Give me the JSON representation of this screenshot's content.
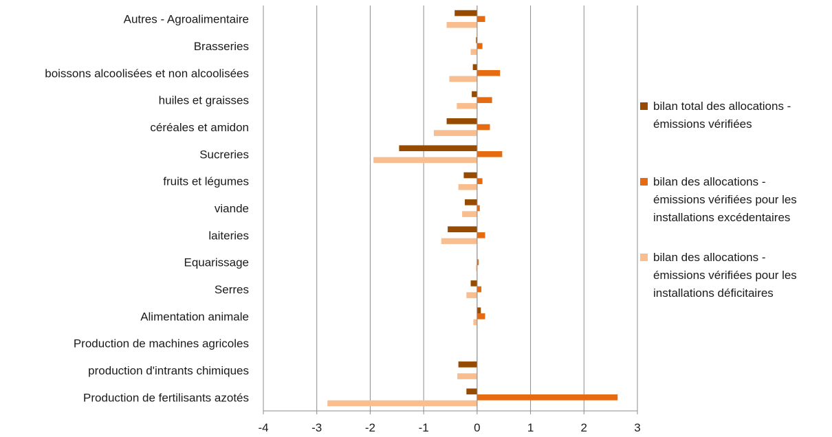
{
  "chart_data": {
    "type": "bar",
    "orientation": "horizontal",
    "categories": [
      "Autres - Agroalimentaire",
      "Brasseries",
      "boissons alcoolisées et non alcoolisées",
      "huiles et graisses",
      "céréales et amidon",
      "Sucreries",
      "fruits et légumes",
      "viande",
      "laiteries",
      "Equarissage",
      "Serres",
      "Alimentation animale",
      "Production de machines agricoles",
      "production d'intrants chimiques",
      "Production de fertilisants azotés"
    ],
    "series": [
      {
        "name": "bilan total des allocations - émissions vérifiées",
        "color": "#964B00",
        "values": [
          -0.42,
          -0.02,
          -0.08,
          -0.1,
          -0.57,
          -1.46,
          -0.25,
          -0.23,
          -0.55,
          0.0,
          -0.12,
          0.07,
          0.0,
          -0.35,
          -0.2
        ]
      },
      {
        "name": "bilan des allocations - émissions vérifiées pour les installations excédentaires",
        "color": "#E66B10",
        "values": [
          0.15,
          0.1,
          0.43,
          0.28,
          0.24,
          0.47,
          0.1,
          0.05,
          0.15,
          0.03,
          0.08,
          0.15,
          0.0,
          0.0,
          2.63
        ]
      },
      {
        "name": "bilan des allocations - émissions vérifiées pour les installations déficitaires",
        "color": "#F9BE8F",
        "values": [
          -0.57,
          -0.12,
          -0.52,
          -0.38,
          -0.81,
          -1.94,
          -0.35,
          -0.28,
          -0.67,
          -0.02,
          -0.2,
          -0.07,
          0.0,
          -0.37,
          -2.8
        ]
      }
    ],
    "xlim": [
      -4,
      3
    ],
    "xticks": [
      "-4",
      "-3",
      "-2",
      "-1",
      "0",
      "1",
      "2",
      "3"
    ],
    "title": "",
    "xlabel": "",
    "ylabel": "",
    "grid": "vertical",
    "legend_position": "right"
  }
}
